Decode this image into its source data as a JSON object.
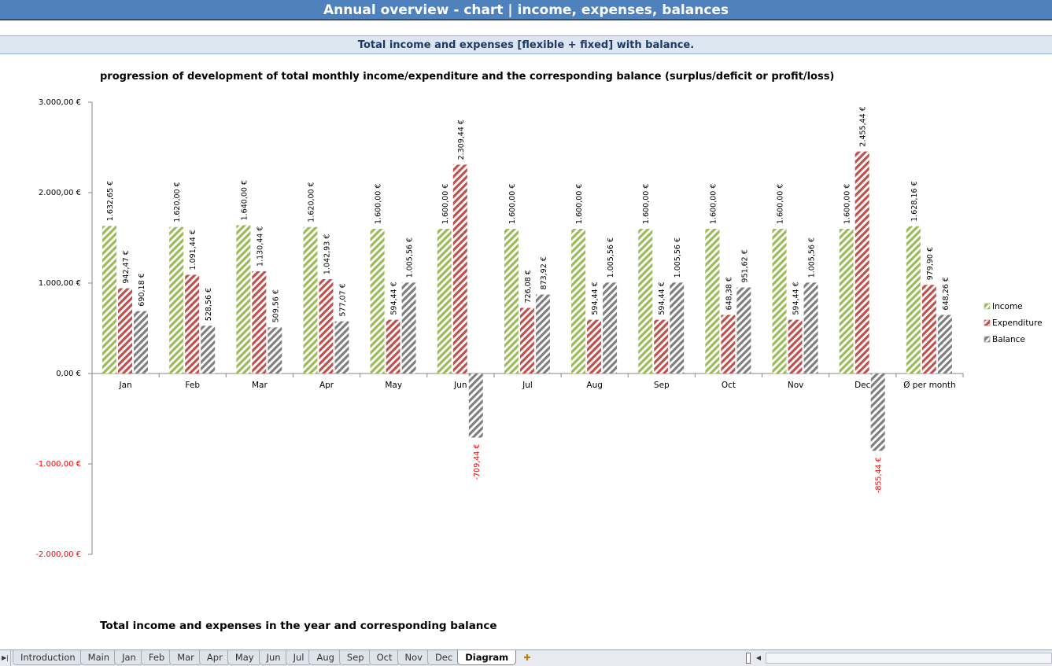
{
  "header": {
    "title": "Annual overview - chart | income, expenses, balances",
    "subtitle": "Total income and expenses [flexible + fixed] with balance."
  },
  "section_title": "Total income and expenses in the year and corresponding balance",
  "colors": {
    "income": "#9bbb59",
    "expenditure": "#c0504d",
    "balance": "#7f7f7f",
    "negative_label": "#ff0000",
    "title_bar": "#4f81bd",
    "subtitle_bar": "#dce6f1"
  },
  "chart_data": {
    "type": "bar",
    "title": "progression of development of total monthly income/expenditure and the corresponding balance (surplus/deficit or profit/loss)",
    "categories": [
      "Jan",
      "Feb",
      "Mar",
      "Apr",
      "May",
      "Jun",
      "Jul",
      "Aug",
      "Sep",
      "Oct",
      "Nov",
      "Dec",
      "Ø per month"
    ],
    "series": [
      {
        "name": "Income",
        "values": [
          1632.65,
          1620.0,
          1640.0,
          1620.0,
          1600.0,
          1600.0,
          1600.0,
          1600.0,
          1600.0,
          1600.0,
          1600.0,
          1600.0,
          1628.16
        ],
        "labels": [
          "1.632,65 €",
          "1.620,00 €",
          "1.640,00 €",
          "1.620,00 €",
          "1.600,00 €",
          "1.600,00 €",
          "1.600,00 €",
          "1.600,00 €",
          "1.600,00 €",
          "1.600,00 €",
          "1.600,00 €",
          "1.600,00 €",
          "1.628,16 €"
        ]
      },
      {
        "name": "Expenditure",
        "values": [
          942.47,
          1091.44,
          1130.44,
          1042.93,
          594.44,
          2309.44,
          726.08,
          594.44,
          594.44,
          648.38,
          594.44,
          2455.44,
          979.9
        ],
        "labels": [
          "942,47 €",
          "1.091,44 €",
          "1.130,44 €",
          "1.042,93 €",
          "594,44 €",
          "2.309,44 €",
          "726,08 €",
          "594,44 €",
          "594,44 €",
          "648,38 €",
          "594,44 €",
          "2.455,44 €",
          "979,90 €"
        ]
      },
      {
        "name": "Balance",
        "values": [
          690.18,
          528.56,
          509.56,
          577.07,
          1005.56,
          -709.44,
          873.92,
          1005.56,
          1005.56,
          951.62,
          1005.56,
          -855.44,
          648.26
        ],
        "labels": [
          "690,18 €",
          "528,56 €",
          "509,56 €",
          "577,07 €",
          "1.005,56 €",
          "-709,44 €",
          "873,92 €",
          "1.005,56 €",
          "1.005,56 €",
          "951,62 €",
          "1.005,56 €",
          "-855,44 €",
          "648,26 €"
        ]
      }
    ],
    "ylim": [
      -2000,
      3000
    ],
    "yticks": [
      3000,
      2000,
      1000,
      0,
      -1000,
      -2000
    ],
    "ytick_labels": [
      "3.000,00 €",
      "2.000,00 €",
      "1.000,00 €",
      "0,00 €",
      "-1.000,00 €",
      "-2.000,00 €"
    ],
    "grid": false,
    "legend": "right"
  },
  "sheet_tabs": [
    "Introduction",
    "Main",
    "Jan",
    "Feb",
    "Mar",
    "Apr",
    "May",
    "Jun",
    "Jul",
    "Aug",
    "Sep",
    "Oct",
    "Nov",
    "Dec",
    "Diagram"
  ],
  "active_tab": "Diagram"
}
